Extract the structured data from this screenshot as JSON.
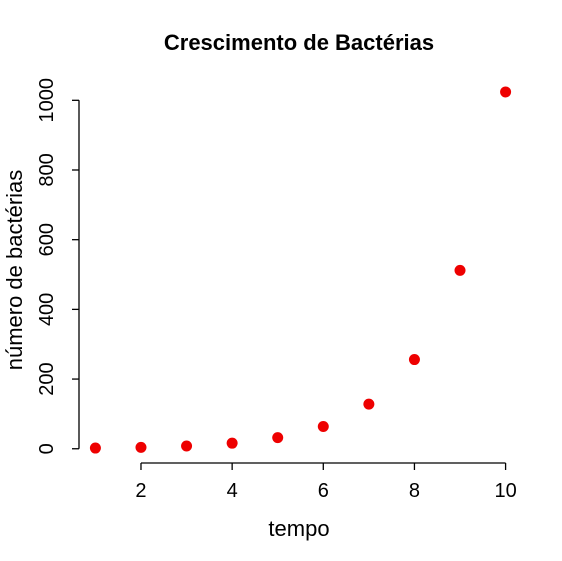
{
  "chart_data": {
    "type": "scatter",
    "title": "Crescimento de Bactérias",
    "xlabel": "tempo",
    "ylabel": "número de bactérias",
    "x": [
      1,
      2,
      3,
      4,
      5,
      6,
      7,
      8,
      9,
      10
    ],
    "y": [
      2,
      4,
      8,
      16,
      32,
      64,
      128,
      256,
      512,
      1024
    ],
    "xticks": [
      2,
      4,
      6,
      8,
      10
    ],
    "yticks": [
      0,
      200,
      400,
      600,
      800,
      1000
    ],
    "xlim": [
      0.64,
      10.36
    ],
    "ylim": [
      -40.88,
      1066.88
    ],
    "point_color": "#ee0000",
    "grid": false
  }
}
